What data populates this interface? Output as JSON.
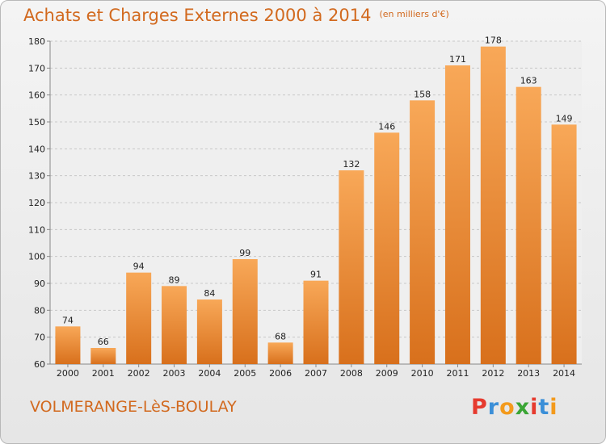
{
  "header": {
    "title": "Achats et Charges Externes 2000 à 2014",
    "subtitle": "(en milliers d'€)"
  },
  "footer": {
    "commune": "VOLMERANGE-LèS-BOULAY",
    "logo": "Proxiti"
  },
  "colors": {
    "title": "#d2691e",
    "bar_light": "#f8a858",
    "bar_dark": "#d8701c",
    "grid": "#c8c8c8",
    "logo_letters": [
      "#e63a2e",
      "#3b8fd8",
      "#f39a1c",
      "#3aa535",
      "#e63a2e",
      "#3b8fd8",
      "#f39a1c"
    ]
  },
  "chart_data": {
    "type": "bar",
    "title": "Achats et Charges Externes 2000 à 2014",
    "subtitle": "(en milliers d'€)",
    "categories": [
      "2000",
      "2001",
      "2002",
      "2003",
      "2004",
      "2005",
      "2006",
      "2007",
      "2008",
      "2009",
      "2010",
      "2011",
      "2012",
      "2013",
      "2014"
    ],
    "values": [
      74,
      66,
      94,
      89,
      84,
      99,
      68,
      91,
      132,
      146,
      158,
      171,
      178,
      163,
      149
    ],
    "ylim": [
      60,
      180
    ],
    "yticks": [
      60,
      70,
      80,
      90,
      100,
      110,
      120,
      130,
      140,
      150,
      160,
      170,
      180
    ],
    "grid": "horizontal dashed",
    "data_labels": true
  }
}
